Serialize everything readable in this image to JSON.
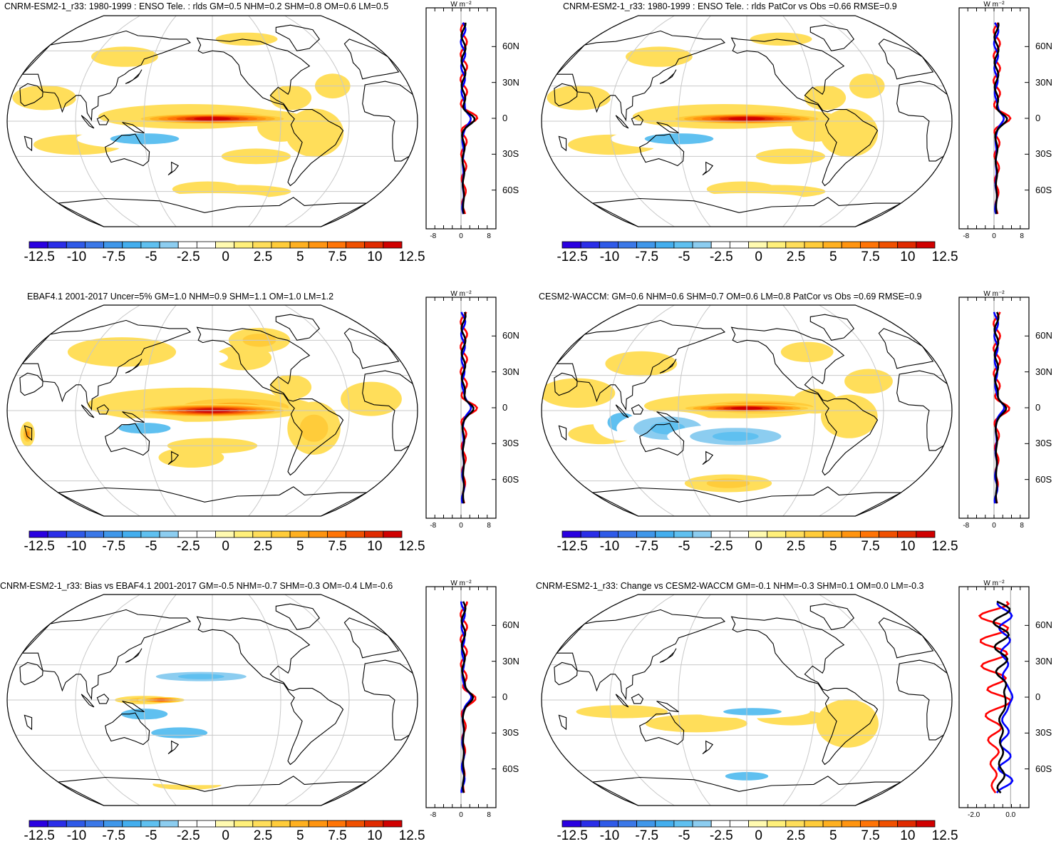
{
  "colorbar": {
    "colors": [
      "#2a00e0",
      "#2b2ee8",
      "#2f5ae8",
      "#3b78e8",
      "#3f97ea",
      "#43aeee",
      "#5fc0f0",
      "#8ccdf0",
      "#ffffff",
      "#ffffff",
      "#fffab0",
      "#fff07a",
      "#ffde5a",
      "#ffcc3a",
      "#ffb020",
      "#ff9410",
      "#ff7406",
      "#f05000",
      "#e02a00",
      "#d00000"
    ],
    "tick_labels": [
      "-12.5",
      "-10",
      "-7.5",
      "-5",
      "-2.5",
      "0",
      "2.5",
      "5",
      "7.5",
      "10",
      "12.5"
    ]
  },
  "profile_colors": {
    "model": "#ff0000",
    "obs": "#0000ff",
    "diff": "#000000"
  },
  "panels": [
    {
      "id": "p1",
      "title": "CNRM-ESM2-1_r33: 1980-1999 : ENSO Tele. : rlds GM=0.5 NHM=0.2 SHM=0.8 OM=0.6 LM=0.5",
      "unit": "W m⁻²",
      "lat_labels": [
        "60N",
        "30N",
        "0",
        "30S",
        "60S"
      ],
      "x_labels": [
        "-8",
        "0",
        "8"
      ],
      "pattern": "model"
    },
    {
      "id": "p2",
      "title": "CNRM-ESM2-1_r33: 1980-1999 : ENSO Tele. : rlds PatCor vs Obs =0.66 RMSE=0.9",
      "unit": "W m⁻²",
      "lat_labels": [
        "60N",
        "30N",
        "0",
        "30S",
        "60S"
      ],
      "x_labels": [
        "-8",
        "0",
        "8"
      ],
      "pattern": "model"
    },
    {
      "id": "p3",
      "title": "EBAF4.1 2001-2017 Uncer=5% GM=1.0 NHM=0.9 SHM=1.1 OM=1.0 LM=1.2",
      "unit": "W m⁻²",
      "lat_labels": [
        "60N",
        "30N",
        "0",
        "30S",
        "60S"
      ],
      "x_labels": [
        "-8",
        "0",
        "8"
      ],
      "pattern": "obs"
    },
    {
      "id": "p4",
      "title": "CESM2-WACCM: GM=0.6 NHM=0.6 SHM=0.7 OM=0.6 LM=0.8 PatCor vs Obs =0.69 RMSE=0.9",
      "unit": "W m⁻²",
      "lat_labels": [
        "60N",
        "30N",
        "0",
        "30S",
        "60S"
      ],
      "x_labels": [
        "-8",
        "0",
        "8"
      ],
      "pattern": "cesm"
    },
    {
      "id": "p5",
      "title": "CNRM-ESM2-1_r33: Bias vs EBAF4.1 2001-2017 GM=-0.5 NHM=-0.7 SHM=-0.3 OM=-0.4 LM=-0.6",
      "unit": "W m⁻²",
      "lat_labels": [
        "60N",
        "30N",
        "0",
        "30S",
        "60S"
      ],
      "x_labels": [
        "-8",
        "0",
        "8"
      ],
      "pattern": "bias"
    },
    {
      "id": "p6",
      "title": "CNRM-ESM2-1_r33: Change vs CESM2-WACCM GM=-0.1 NHM=-0.3 SHM=0.1 OM=0.0 LM=-0.3",
      "unit": "W m⁻²",
      "lat_labels": [
        "60N",
        "30N",
        "0",
        "30S",
        "60S"
      ],
      "x_labels": [
        "-2.0",
        "0.0"
      ],
      "pattern": "change"
    }
  ]
}
